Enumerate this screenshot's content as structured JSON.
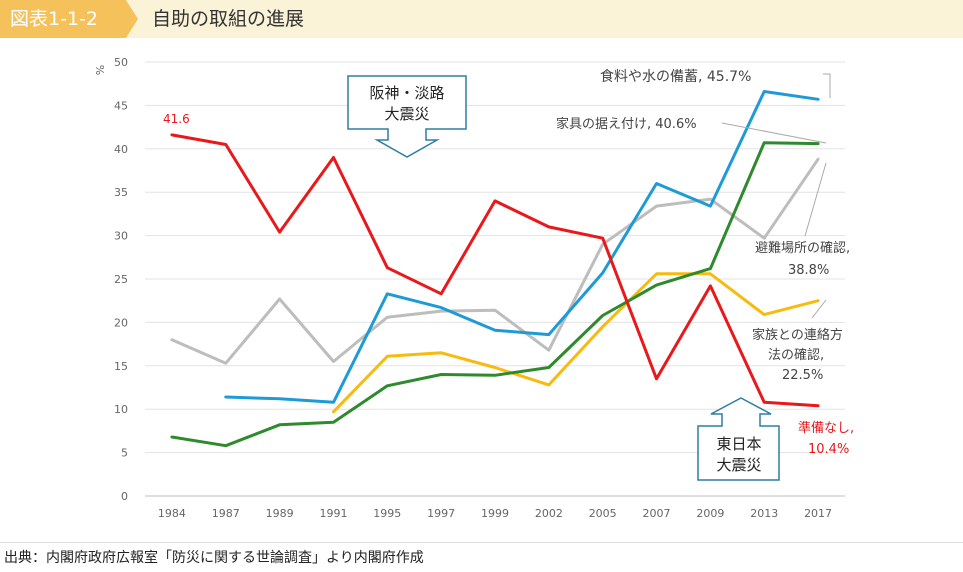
{
  "header": {
    "figure_tag": "図表1-1-2",
    "title": "自助の取組の進展"
  },
  "source": "出典：内閣府政府広報室「防災に関する世論調査」より内閣府作成",
  "chart_data": {
    "type": "line",
    "ylabel": "%",
    "ylim": [
      0,
      50
    ],
    "ytick_step": 5,
    "grid": true,
    "categories": [
      "1984",
      "1987",
      "1989",
      "1991",
      "1995",
      "1997",
      "1999",
      "2002",
      "2005",
      "2007",
      "2009",
      "2013",
      "2017"
    ],
    "series": [
      {
        "key": "none",
        "color": "#e8181b",
        "values": [
          41.6,
          40.5,
          30.4,
          39.0,
          26.3,
          23.3,
          34.0,
          31.0,
          29.7,
          13.5,
          24.2,
          10.8,
          10.4
        ]
      },
      {
        "key": "food",
        "color": "#1e9bd7",
        "values": [
          null,
          11.4,
          11.2,
          10.8,
          23.3,
          21.7,
          19.1,
          18.6,
          25.7,
          36.0,
          33.4,
          46.6,
          45.7
        ]
      },
      {
        "key": "furniture",
        "color": "#2f8a2e",
        "values": [
          6.8,
          5.8,
          8.2,
          8.5,
          12.7,
          14.0,
          13.9,
          14.8,
          20.8,
          24.3,
          26.2,
          40.7,
          40.6
        ]
      },
      {
        "key": "shelter",
        "color": "#bdbdbd",
        "values": [
          18.0,
          15.3,
          22.7,
          15.5,
          20.6,
          21.3,
          21.4,
          16.8,
          29.0,
          33.4,
          34.2,
          29.7,
          38.8
        ]
      },
      {
        "key": "contact",
        "color": "#f7bb10",
        "values": [
          null,
          null,
          null,
          9.7,
          16.1,
          16.5,
          14.8,
          12.8,
          19.5,
          25.6,
          25.6,
          20.9,
          22.5
        ]
      }
    ],
    "labels": {
      "first_point": "41.6",
      "food": "食料や水の備蓄, 45.7%",
      "furniture": "家具の据え付け, 40.6%",
      "shelter_1": "避難場所の確認,",
      "shelter_2": "38.8%",
      "contact_1": "家族との連絡方",
      "contact_2": "法の確認,",
      "contact_3": "22.5%",
      "none_1": "準備なし,",
      "none_2": "10.4%"
    },
    "annotations": {
      "hanshin_1": "阪神・淡路",
      "hanshin_2": "大震災",
      "higashi_1": "東日本",
      "higashi_2": "大震災"
    }
  }
}
